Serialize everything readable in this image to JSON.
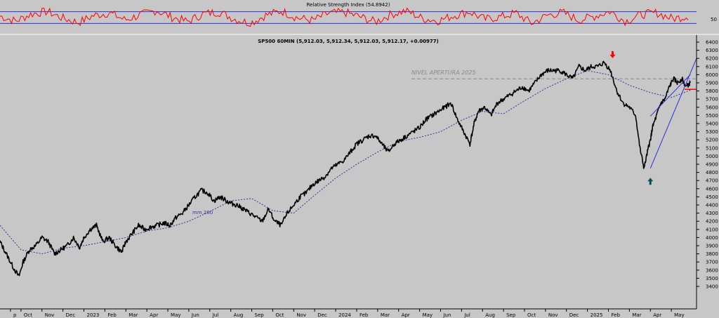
{
  "chart_data": [
    {
      "type": "line",
      "title": "Relative Strength Index (54.8942)",
      "ylim": [
        0,
        100
      ],
      "bands": [
        30,
        70
      ],
      "y_ticks": [
        "50"
      ],
      "series": [
        {
          "color": "#ff0000",
          "style": "oscillator",
          "values": [
            55,
            38,
            62,
            71,
            48,
            33,
            57,
            66,
            42,
            59,
            74,
            51,
            36,
            63,
            69,
            45,
            31,
            58,
            72,
            49,
            40,
            64,
            68,
            53,
            35,
            61,
            73,
            47,
            39,
            56,
            70,
            44,
            52,
            65,
            30,
            58,
            67,
            41,
            54,
            71,
            37,
            60,
            66,
            46,
            55
          ]
        }
      ],
      "colors": {
        "line": "#ff0000",
        "band": "#2f2fd8",
        "background": "#c7c7c7"
      }
    },
    {
      "type": "line",
      "title": "SP500 60MIN (5,912.03, 5,912.34, 5,912.03, 5,912.17, +0.00977)",
      "ylim": [
        3400,
        6400
      ],
      "y_ticks": [
        3400,
        3500,
        3600,
        3700,
        3800,
        3900,
        4000,
        4100,
        4200,
        4300,
        4400,
        4500,
        4600,
        4700,
        4800,
        4900,
        5000,
        5100,
        5200,
        5300,
        5400,
        5500,
        5600,
        5700,
        5800,
        5900,
        6000,
        6100,
        6200,
        6300,
        6400
      ],
      "x_ticks": [
        {
          "label": "p",
          "t": 0.5
        },
        {
          "label": "Oct",
          "t": 1.0
        },
        {
          "label": "Nov",
          "t": 2.0
        },
        {
          "label": "Dec",
          "t": 3.0
        },
        {
          "label": "2023",
          "t": 4.0
        },
        {
          "label": "Feb",
          "t": 5.0
        },
        {
          "label": "Mar",
          "t": 6.0
        },
        {
          "label": "Apr",
          "t": 7.0
        },
        {
          "label": "May",
          "t": 8.0
        },
        {
          "label": "Jun",
          "t": 9.0
        },
        {
          "label": "Jul",
          "t": 10.0
        },
        {
          "label": "Aug",
          "t": 11.0
        },
        {
          "label": "Sep",
          "t": 12.0
        },
        {
          "label": "Oct",
          "t": 13.0
        },
        {
          "label": "Nov",
          "t": 14.0
        },
        {
          "label": "Dec",
          "t": 15.0
        },
        {
          "label": "2024",
          "t": 16.0
        },
        {
          "label": "Feb",
          "t": 17.0
        },
        {
          "label": "Mar",
          "t": 18.0
        },
        {
          "label": "Apr",
          "t": 19.0
        },
        {
          "label": "May",
          "t": 20.0
        },
        {
          "label": "Jun",
          "t": 21.0
        },
        {
          "label": "Jul",
          "t": 22.0
        },
        {
          "label": "Aug",
          "t": 23.0
        },
        {
          "label": "Sep",
          "t": 24.0
        },
        {
          "label": "Oct",
          "t": 25.0
        },
        {
          "label": "Nov",
          "t": 26.0
        },
        {
          "label": "Dec",
          "t": 27.0
        },
        {
          "label": "2025",
          "t": 28.0
        },
        {
          "label": "Feb",
          "t": 29.0
        },
        {
          "label": "Mar",
          "t": 30.0
        },
        {
          "label": "Apr",
          "t": 31.0
        },
        {
          "label": "May",
          "t": 32.0
        }
      ],
      "xlim": [
        0,
        33.2
      ],
      "series": [
        {
          "style": "price",
          "color": "#000000",
          "x": [
            0,
            0.3,
            0.6,
            0.9,
            1.1,
            1.4,
            1.7,
            2.0,
            2.3,
            2.6,
            2.9,
            3.2,
            3.5,
            3.8,
            4.0,
            4.3,
            4.6,
            4.9,
            5.2,
            5.5,
            5.8,
            6.0,
            6.3,
            6.6,
            6.9,
            7.2,
            7.5,
            7.8,
            8.1,
            8.4,
            8.7,
            9.0,
            9.3,
            9.6,
            9.9,
            10.2,
            10.5,
            10.8,
            11.0,
            11.3,
            11.6,
            11.9,
            12.2,
            12.5,
            12.8,
            13.1,
            13.4,
            13.7,
            14.0,
            14.3,
            14.6,
            14.9,
            15.2,
            15.5,
            15.8,
            16.1,
            16.4,
            16.7,
            17.0,
            17.3,
            17.6,
            17.9,
            18.2,
            18.5,
            18.8,
            19.1,
            19.4,
            19.7,
            20.0,
            20.3,
            20.6,
            20.9,
            21.2,
            21.5,
            21.8,
            22.1,
            22.4,
            22.6,
            22.8,
            23.1,
            23.4,
            23.7,
            24.0,
            24.3,
            24.6,
            24.9,
            25.2,
            25.5,
            25.8,
            26.1,
            26.4,
            26.7,
            27.0,
            27.3,
            27.6,
            27.9,
            28.2,
            28.5,
            28.8,
            29.1,
            29.4,
            29.7,
            30.0,
            30.3,
            30.5,
            30.7,
            30.9,
            31.0,
            31.1,
            31.3,
            31.5,
            31.7,
            31.9,
            32.1,
            32.3,
            32.5,
            32.7,
            32.9
          ],
          "values": [
            3950,
            3800,
            3650,
            3520,
            3700,
            3850,
            3900,
            4000,
            3950,
            3800,
            3850,
            3900,
            4000,
            3880,
            4000,
            4100,
            4150,
            3950,
            4000,
            3900,
            3820,
            3950,
            4050,
            4150,
            4100,
            4130,
            4150,
            4180,
            4150,
            4250,
            4300,
            4400,
            4500,
            4580,
            4550,
            4450,
            4500,
            4450,
            4420,
            4400,
            4350,
            4300,
            4250,
            4200,
            4350,
            4200,
            4150,
            4300,
            4400,
            4500,
            4550,
            4650,
            4700,
            4750,
            4850,
            4900,
            4950,
            5050,
            5150,
            5200,
            5250,
            5250,
            5150,
            5050,
            5150,
            5200,
            5250,
            5300,
            5350,
            5450,
            5500,
            5550,
            5600,
            5650,
            5450,
            5300,
            5150,
            5400,
            5550,
            5600,
            5500,
            5650,
            5700,
            5750,
            5800,
            5850,
            5800,
            5900,
            6000,
            6050,
            6050,
            6050,
            6000,
            5950,
            6100,
            6050,
            6100,
            6100,
            6150,
            6050,
            5800,
            5650,
            5600,
            5500,
            5100,
            4850,
            5100,
            5200,
            5350,
            5500,
            5650,
            5700,
            5850,
            5950,
            5900,
            5950,
            5850,
            5900
          ]
        },
        {
          "name": "mm 200",
          "style": "ma",
          "color": "#3c2f9a",
          "x": [
            0,
            1,
            2,
            3,
            4,
            5,
            6,
            7,
            8,
            9,
            10,
            11,
            12,
            13,
            14,
            15,
            16,
            17,
            18,
            19,
            20,
            21,
            22,
            23,
            24,
            25,
            26,
            27,
            28,
            29,
            30,
            31,
            32,
            33
          ],
          "values": [
            4150,
            3850,
            3800,
            3870,
            3900,
            3950,
            4000,
            4080,
            4120,
            4200,
            4320,
            4450,
            4480,
            4330,
            4300,
            4520,
            4730,
            4900,
            5050,
            5180,
            5230,
            5300,
            5440,
            5550,
            5520,
            5680,
            5830,
            5950,
            6050,
            6000,
            5870,
            5780,
            5720,
            5820
          ]
        }
      ],
      "annotations": {
        "opening_level": {
          "label": "NIVEL APERTURA 2025",
          "y": 5950,
          "color": "#8a8a8a"
        },
        "ma_label": "mm 200",
        "red_level": {
          "y": 5820,
          "color": "#ff0000"
        },
        "top_arrow": {
          "x": 29.2,
          "y": 6220,
          "direction": "down",
          "color": "#ff0000"
        },
        "bottom_arrow": {
          "x": 31.0,
          "y": 4700,
          "direction": "up",
          "color": "#0d4f4f"
        },
        "channel_lines": [
          {
            "x1": 31.0,
            "y1": 4850,
            "x2": 33.2,
            "y2": 6200,
            "color": "#2f2fd8"
          },
          {
            "x1": 31.0,
            "y1": 5490,
            "x2": 32.9,
            "y2": 6000,
            "color": "#2f2fd8"
          }
        ]
      }
    }
  ]
}
